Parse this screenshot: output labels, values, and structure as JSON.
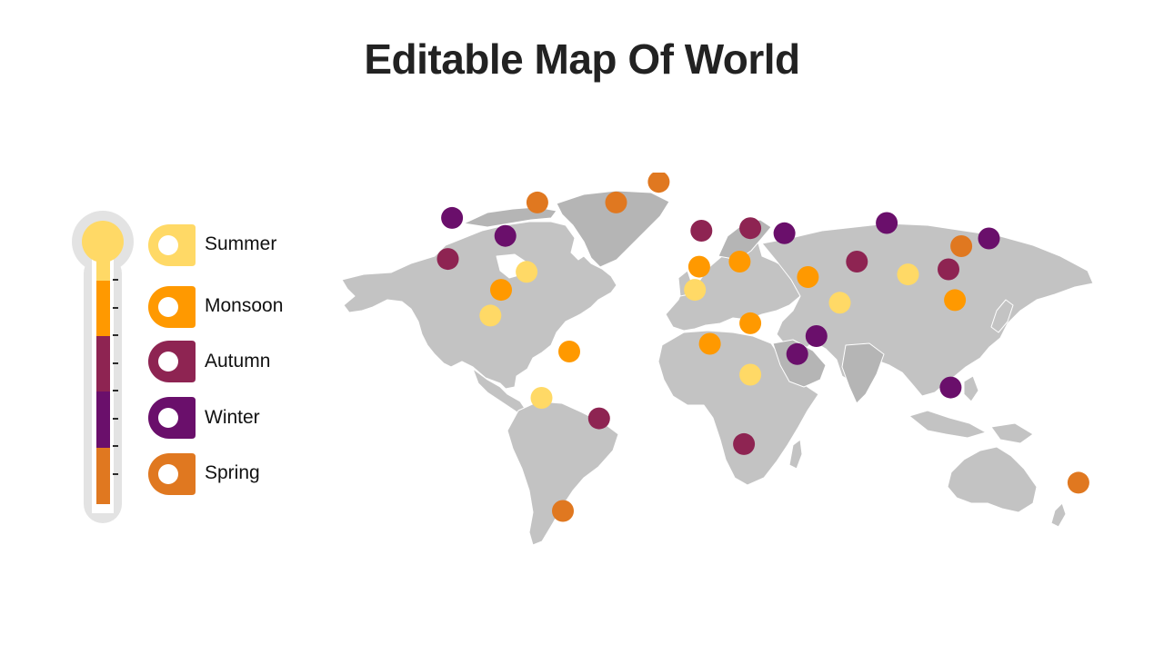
{
  "title": "Editable Map Of World",
  "colors": {
    "summer": "#FFD966",
    "monsoon": "#FF9900",
    "autumn": "#8E2452",
    "winter": "#6A0F6B",
    "spring": "#E07820",
    "land": "#C3C3C3",
    "land_shade": "#B5B5B5",
    "thermo_outline": "#E3E3E3"
  },
  "legend": [
    {
      "key": "summer",
      "label": "Summer"
    },
    {
      "key": "monsoon",
      "label": "Monsoon"
    },
    {
      "key": "autumn",
      "label": "Autumn"
    },
    {
      "key": "winter",
      "label": "Winter"
    },
    {
      "key": "spring",
      "label": "Spring"
    }
  ],
  "markers": [
    {
      "season": "winter",
      "lon": -120,
      "lat": 58
    },
    {
      "season": "spring",
      "lon": -80,
      "lat": 64
    },
    {
      "season": "spring",
      "lon": -43,
      "lat": 64
    },
    {
      "season": "spring",
      "lon": -23,
      "lat": 72
    },
    {
      "season": "winter",
      "lon": -95,
      "lat": 51
    },
    {
      "season": "autumn",
      "lon": -122,
      "lat": 42
    },
    {
      "season": "summer",
      "lon": -85,
      "lat": 37
    },
    {
      "season": "monsoon",
      "lon": -97,
      "lat": 30
    },
    {
      "season": "summer",
      "lon": -102,
      "lat": 20
    },
    {
      "season": "monsoon",
      "lon": -65,
      "lat": 6
    },
    {
      "season": "summer",
      "lon": -78,
      "lat": -12
    },
    {
      "season": "autumn",
      "lon": -51,
      "lat": -20
    },
    {
      "season": "spring",
      "lon": -68,
      "lat": -56
    },
    {
      "season": "autumn",
      "lon": -3,
      "lat": 53
    },
    {
      "season": "autumn",
      "lon": 20,
      "lat": 54
    },
    {
      "season": "winter",
      "lon": 36,
      "lat": 52
    },
    {
      "season": "winter",
      "lon": 84,
      "lat": 56
    },
    {
      "season": "monsoon",
      "lon": -4,
      "lat": 39
    },
    {
      "season": "monsoon",
      "lon": 15,
      "lat": 41
    },
    {
      "season": "summer",
      "lon": -6,
      "lat": 30
    },
    {
      "season": "monsoon",
      "lon": 47,
      "lat": 35
    },
    {
      "season": "autumn",
      "lon": 70,
      "lat": 41
    },
    {
      "season": "summer",
      "lon": 62,
      "lat": 25
    },
    {
      "season": "monsoon",
      "lon": 20,
      "lat": 17
    },
    {
      "season": "monsoon",
      "lon": 1,
      "lat": 9
    },
    {
      "season": "winter",
      "lon": 51,
      "lat": 12
    },
    {
      "season": "winter",
      "lon": 42,
      "lat": 5
    },
    {
      "season": "summer",
      "lon": 20,
      "lat": -3
    },
    {
      "season": "autumn",
      "lon": 17,
      "lat": -30
    },
    {
      "season": "summer",
      "lon": 94,
      "lat": 36
    },
    {
      "season": "autumn",
      "lon": 113,
      "lat": 38
    },
    {
      "season": "spring",
      "lon": 119,
      "lat": 47
    },
    {
      "season": "winter",
      "lon": 132,
      "lat": 50
    },
    {
      "season": "monsoon",
      "lon": 116,
      "lat": 26
    },
    {
      "season": "winter",
      "lon": 114,
      "lat": -8
    },
    {
      "season": "spring",
      "lon": 174,
      "lat": -45
    }
  ]
}
